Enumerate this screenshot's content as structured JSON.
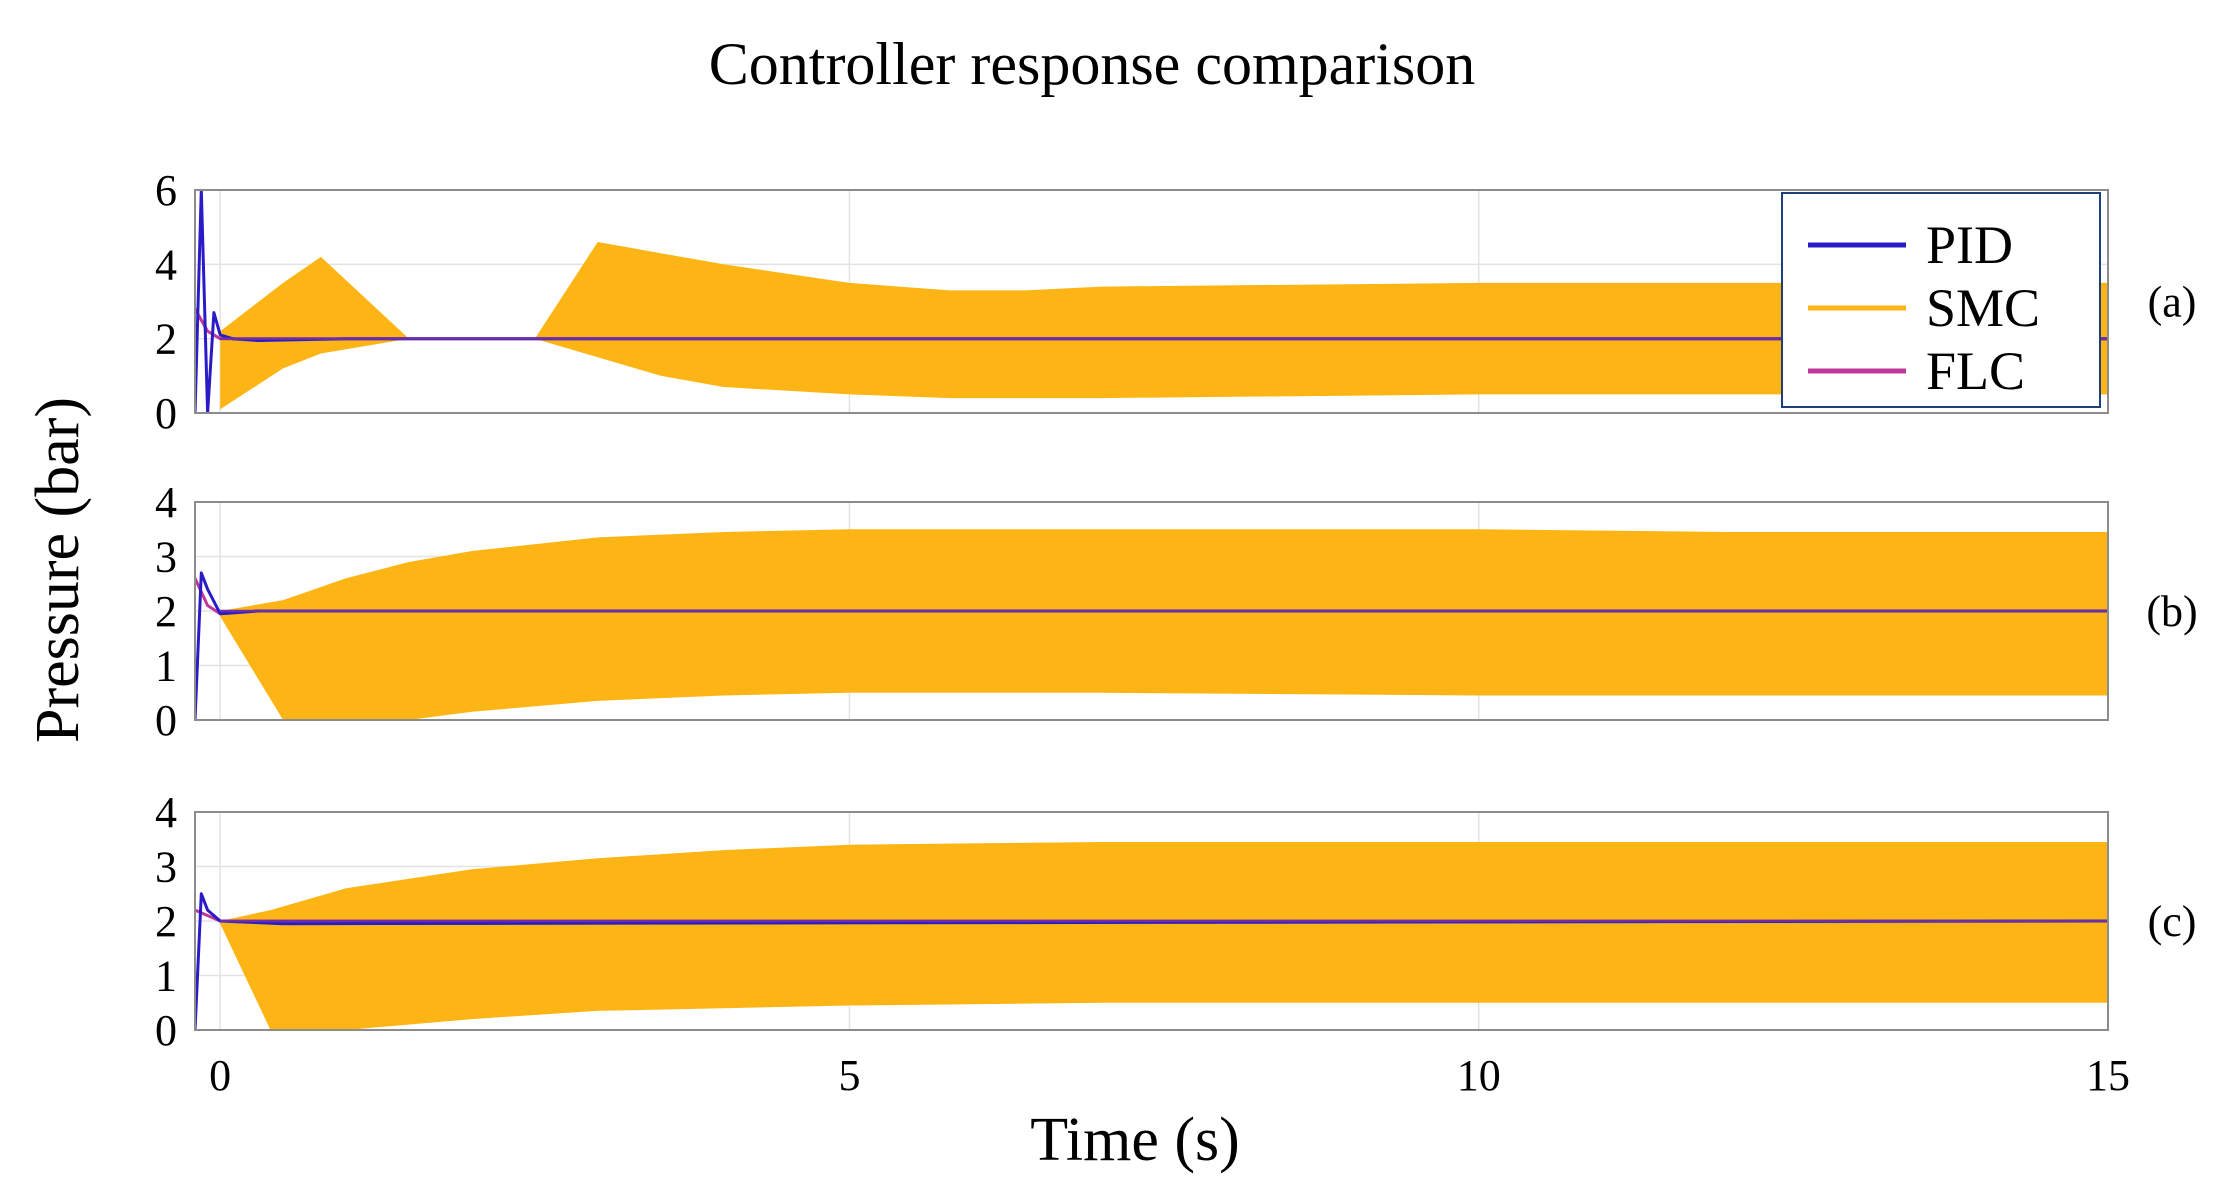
{
  "chart_data": {
    "type": "line",
    "title": "Controller response comparison",
    "xlabel": "Time (s)",
    "ylabel": "Pressure (bar)",
    "xlim": [
      -0.2,
      15
    ],
    "xticks": [
      0,
      5,
      10,
      15
    ],
    "grid": true,
    "colors": {
      "PID": "#2a1bc7",
      "SMC": "#fdb515",
      "FLC": "#c0389a"
    },
    "legend": {
      "placement": "top-right of panel (a)",
      "entries": [
        "PID",
        "SMC",
        "FLC"
      ]
    },
    "panels": [
      {
        "label": "(a)",
        "ylim": [
          0,
          6
        ],
        "yticks": [
          0,
          2,
          4,
          6
        ],
        "setpoint": 2,
        "series": [
          {
            "name": "PID",
            "x": [
              -0.2,
              -0.15,
              -0.1,
              -0.05,
              0.0,
              0.1,
              0.3,
              1.0,
              15.0
            ],
            "y": [
              0.0,
              6.0,
              0.0,
              2.7,
              2.1,
              2.0,
              1.95,
              2.0,
              2.0
            ]
          },
          {
            "name": "FLC",
            "x": [
              -0.2,
              -0.1,
              0.0,
              0.3,
              15.0
            ],
            "y": [
              2.8,
              2.2,
              2.0,
              2.0,
              2.0
            ]
          },
          {
            "name": "SMC",
            "x": [
              0.0,
              0.5,
              0.8,
              1.5,
              2.0,
              2.5,
              3.0,
              3.5,
              4.0,
              5.0,
              5.8,
              6.4,
              7.0,
              10.0,
              15.0
            ],
            "upper": [
              2.2,
              3.5,
              4.2,
              2.0,
              2.0,
              2.0,
              4.6,
              4.3,
              4.0,
              3.5,
              3.3,
              3.3,
              3.4,
              3.5,
              3.5
            ],
            "lower": [
              0.1,
              1.2,
              1.6,
              2.0,
              2.0,
              2.0,
              1.5,
              1.0,
              0.7,
              0.5,
              0.4,
              0.4,
              0.4,
              0.5,
              0.5
            ]
          }
        ]
      },
      {
        "label": "(b)",
        "ylim": [
          0,
          4
        ],
        "yticks": [
          0,
          1,
          2,
          3,
          4
        ],
        "setpoint": 2,
        "series": [
          {
            "name": "PID",
            "x": [
              -0.2,
              -0.15,
              -0.1,
              0.0,
              0.3,
              1.0,
              15.0
            ],
            "y": [
              0.0,
              2.7,
              2.4,
              1.95,
              2.0,
              2.0,
              2.0
            ]
          },
          {
            "name": "FLC",
            "x": [
              -0.2,
              -0.1,
              0.0,
              0.3,
              15.0
            ],
            "y": [
              2.6,
              2.1,
              1.95,
              2.0,
              2.0
            ]
          },
          {
            "name": "SMC",
            "x": [
              0.0,
              0.5,
              1.0,
              1.5,
              2.0,
              3.0,
              4.0,
              5.0,
              7.0,
              10.0,
              12.0,
              15.0
            ],
            "upper": [
              2.0,
              2.2,
              2.6,
              2.9,
              3.1,
              3.35,
              3.45,
              3.5,
              3.5,
              3.5,
              3.45,
              3.45
            ],
            "lower": [
              1.9,
              0.0,
              0.0,
              0.0,
              0.15,
              0.35,
              0.45,
              0.5,
              0.5,
              0.45,
              0.45,
              0.45
            ]
          }
        ]
      },
      {
        "label": "(c)",
        "ylim": [
          0,
          4
        ],
        "yticks": [
          0,
          1,
          2,
          3,
          4
        ],
        "setpoint": 2,
        "series": [
          {
            "name": "PID",
            "x": [
              -0.2,
              -0.15,
              -0.1,
              0.0,
              0.5,
              15.0
            ],
            "y": [
              0.0,
              2.5,
              2.2,
              2.0,
              1.95,
              2.0
            ]
          },
          {
            "name": "FLC",
            "x": [
              -0.2,
              0.0,
              15.0
            ],
            "y": [
              2.2,
              2.0,
              2.0
            ]
          },
          {
            "name": "SMC",
            "x": [
              0.0,
              0.4,
              1.0,
              2.0,
              3.0,
              4.0,
              5.0,
              7.0,
              10.0,
              15.0
            ],
            "upper": [
              2.0,
              2.2,
              2.6,
              2.95,
              3.15,
              3.3,
              3.4,
              3.45,
              3.45,
              3.45
            ],
            "lower": [
              1.95,
              0.0,
              0.0,
              0.2,
              0.35,
              0.4,
              0.45,
              0.5,
              0.5,
              0.5
            ]
          }
        ]
      }
    ]
  }
}
